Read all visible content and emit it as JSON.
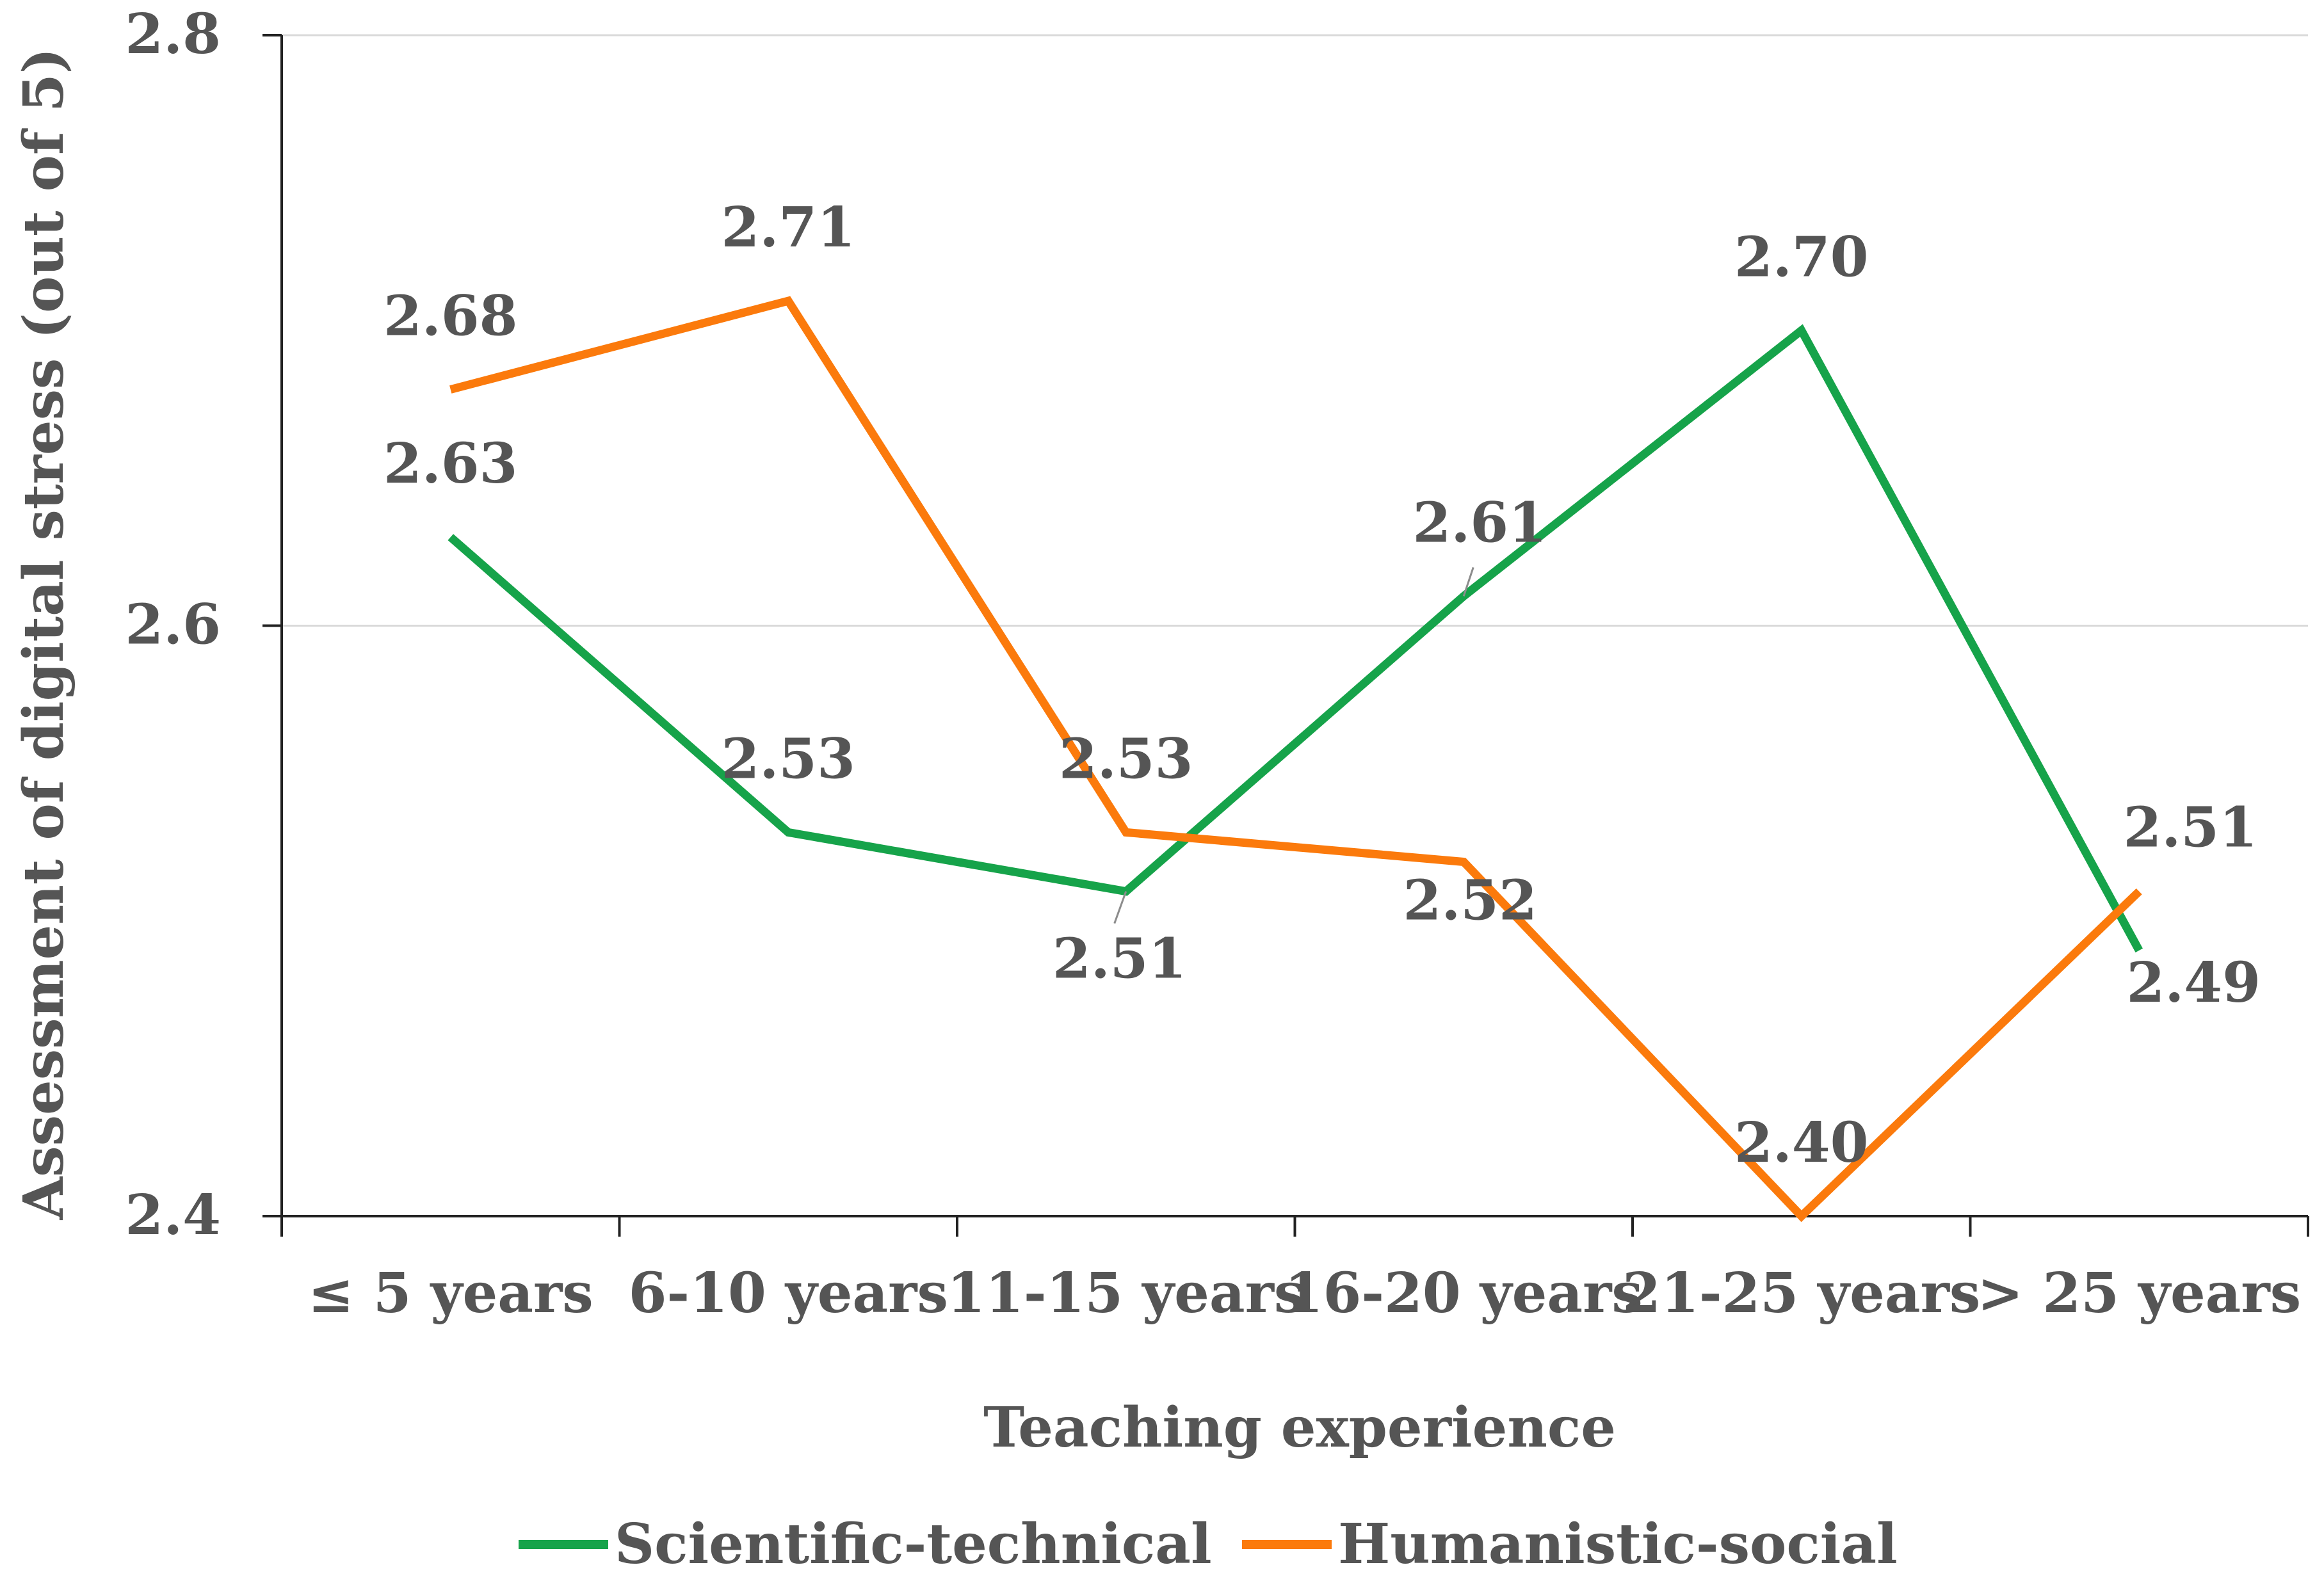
{
  "chart_data": {
    "type": "line",
    "title": "",
    "xlabel": "Teaching experience",
    "ylabel": "Assessment of digital stress (out of 5)",
    "ylim": [
      2.4,
      2.8
    ],
    "yticks": [
      "2.4",
      "2.6",
      "2.8"
    ],
    "grid": true,
    "legend_position": "bottom",
    "categories": [
      "≤ 5 years",
      "6-10 years",
      "11-15 years",
      "16-20 years",
      "21-25 years",
      "> 25 years"
    ],
    "series": [
      {
        "name": "Scientific-technical",
        "color": "#16a34a",
        "values": [
          2.63,
          2.53,
          2.51,
          2.61,
          2.7,
          2.49
        ],
        "labels": [
          "2.63",
          "2.53",
          "2.51",
          "2.61",
          "2.70",
          "2.49"
        ]
      },
      {
        "name": "Humanistic-social",
        "color": "#fb7a0c",
        "values": [
          2.68,
          2.71,
          2.53,
          2.52,
          2.4,
          2.51
        ],
        "labels": [
          "2.68",
          "2.71",
          "2.53",
          "2.52",
          "2.40",
          "2.51"
        ]
      }
    ]
  }
}
